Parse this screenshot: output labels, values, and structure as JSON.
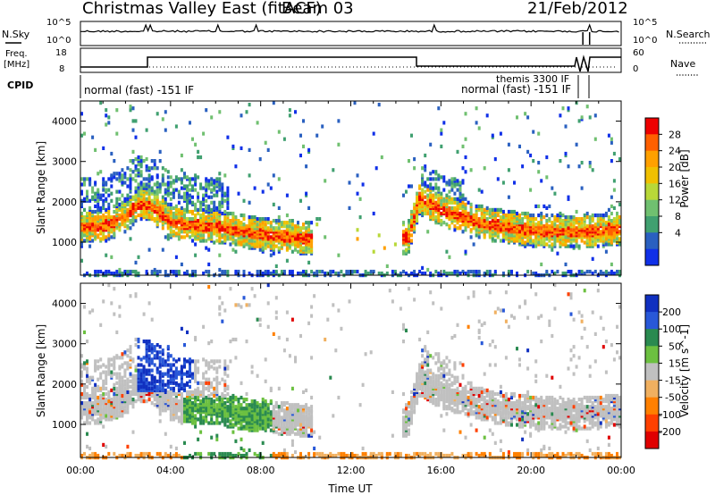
{
  "header": {
    "title": "Christmas Valley East (fitACF)",
    "beam": "Beam 03",
    "date": "21/Feb/2012"
  },
  "status_panels": {
    "nsky_label": "N.Sky",
    "nsky_ticks": [
      "10^5",
      "10^0"
    ],
    "nsearch_label": "N.Search",
    "nsearch_ticks": [
      "10^5",
      "10^0"
    ],
    "freq_label": "Freq.",
    "freq_unit": "[MHz]",
    "freq_ticks": [
      "18",
      "8"
    ],
    "nave_label": "Nave",
    "nave_ticks": [
      "60",
      "0"
    ],
    "cpid_label": "CPID",
    "cpid_entries": [
      "normal (fast) -151 IF",
      "themis 3300 IF",
      "normal (fast) -151 IF"
    ]
  },
  "chart_data": [
    {
      "type": "heatmap",
      "title": "",
      "xlabel": "",
      "ylabel": "Slant Range [km]",
      "xlim": [
        "00:00",
        "24:00"
      ],
      "ylim": [
        180,
        4500
      ],
      "yticks": [
        "4000",
        "3000",
        "2000",
        "1000"
      ],
      "colorbar": {
        "label": "Power [dB]",
        "ticks": [
          "28",
          "24",
          "20",
          "16",
          "12",
          "8",
          "4"
        ],
        "colors": [
          "#ee0000",
          "#ff6000",
          "#ffa000",
          "#f0c000",
          "#b8d838",
          "#70c070",
          "#40a070",
          "#2a60c0",
          "#1030e8"
        ]
      },
      "series": [
        {
          "x": [
            "00:00",
            "01:00",
            "02:00",
            "02:30",
            "03:00",
            "04:00",
            "05:00",
            "06:00",
            "08:00",
            "10:00",
            "14:30",
            "15:00",
            "16:00",
            "18:00",
            "20:00",
            "22:00",
            "24:00"
          ],
          "values": [
            1400,
            1400,
            1650,
            1950,
            1950,
            1500,
            1420,
            1380,
            1200,
            1100,
            1100,
            2100,
            1800,
            1450,
            1300,
            1250,
            1350
          ]
        }
      ]
    },
    {
      "type": "heatmap",
      "title": "",
      "xlabel": "Time UT",
      "ylabel": "Slant Range [km]",
      "xlim": [
        "00:00",
        "24:00"
      ],
      "ylim": [
        180,
        4500
      ],
      "yticks": [
        "4000",
        "3000",
        "2000",
        "1000"
      ],
      "xticks": [
        "00:00",
        "04:00",
        "08:00",
        "12:00",
        "16:00",
        "20:00",
        "00:00"
      ],
      "colorbar": {
        "label": "Velocity [m s^-1]",
        "ticks": [
          "200",
          "100",
          "50",
          "15",
          "-15",
          "-50",
          "-100",
          "-200"
        ],
        "colors": [
          "#1030c0",
          "#2858d8",
          "#2a8a50",
          "#6cc040",
          "#c0c0c0",
          "#f0b060",
          "#ff8000",
          "#ff4000",
          "#e00000"
        ]
      }
    }
  ]
}
